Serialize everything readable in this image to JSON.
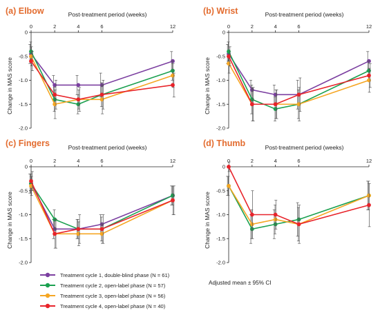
{
  "chart_data": [
    {
      "type": "line",
      "title": "(a) Elbow",
      "xlabel": "Post-treatment period (weeks)",
      "ylabel": "Change in MAS score",
      "x": [
        0,
        2,
        4,
        6,
        12
      ],
      "x_ticks": [
        "0",
        "2",
        "4",
        "6",
        "12"
      ],
      "y_ticks": [
        "0",
        "-0.5",
        "-1.0",
        "-1.5",
        "-2.0"
      ],
      "xlim": [
        0,
        12
      ],
      "ylim": [
        -2.0,
        0
      ],
      "series": [
        {
          "name": "Treatment cycle 1, double-blind phase (N = 61)",
          "color": "#7b3fa0",
          "values": [
            -0.45,
            -1.1,
            -1.1,
            -1.1,
            -0.6
          ],
          "ci": [
            0.2,
            0.2,
            0.2,
            0.25,
            0.2
          ]
        },
        {
          "name": "Treatment cycle 2, open-label phase (N = 57)",
          "color": "#1aa04f",
          "values": [
            -0.4,
            -1.4,
            -1.5,
            -1.3,
            -0.8
          ],
          "ci": [
            0.2,
            0.25,
            0.2,
            0.25,
            0.2
          ]
        },
        {
          "name": "Treatment cycle 3, open-label phase (N = 56)",
          "color": "#f5a623",
          "values": [
            -0.5,
            -1.5,
            -1.4,
            -1.4,
            -0.9
          ],
          "ci": [
            0.2,
            0.3,
            0.2,
            0.3,
            0.25
          ]
        },
        {
          "name": "Treatment cycle 4, open-label phase (N = 40)",
          "color": "#e8232a",
          "values": [
            -0.6,
            -1.3,
            -1.4,
            -1.3,
            -1.1
          ],
          "ci": [
            0.2,
            0.3,
            0.25,
            0.3,
            0.25
          ]
        }
      ]
    },
    {
      "type": "line",
      "title": "(b) Wrist",
      "xlabel": "Post-treatment period (weeks)",
      "ylabel": "Change in MAS score",
      "x": [
        0,
        2,
        4,
        6,
        12
      ],
      "x_ticks": [
        "0",
        "2",
        "4",
        "6",
        "12"
      ],
      "y_ticks": [
        "0",
        "-0.5",
        "-1.0",
        "-1.5",
        "-2.0"
      ],
      "xlim": [
        0,
        12
      ],
      "ylim": [
        -2.0,
        0
      ],
      "series": [
        {
          "name": "Treatment cycle 1, double-blind phase (N = 61)",
          "color": "#7b3fa0",
          "values": [
            -0.45,
            -1.2,
            -1.3,
            -1.3,
            -0.6
          ],
          "ci": [
            0.2,
            0.2,
            0.2,
            0.3,
            0.2
          ]
        },
        {
          "name": "Treatment cycle 2, open-label phase (N = 57)",
          "color": "#1aa04f",
          "values": [
            -0.4,
            -1.4,
            -1.6,
            -1.5,
            -0.8
          ],
          "ci": [
            0.2,
            0.3,
            0.25,
            0.3,
            0.2
          ]
        },
        {
          "name": "Treatment cycle 3, open-label phase (N = 56)",
          "color": "#f5a623",
          "values": [
            -0.65,
            -1.5,
            -1.5,
            -1.5,
            -1.0
          ],
          "ci": [
            0.2,
            0.35,
            0.3,
            0.35,
            0.25
          ]
        },
        {
          "name": "Treatment cycle 4, open-label phase (N = 40)",
          "color": "#e8232a",
          "values": [
            -0.5,
            -1.5,
            -1.5,
            -1.3,
            -0.9
          ],
          "ci": [
            0.2,
            0.35,
            0.3,
            0.35,
            0.25
          ]
        }
      ]
    },
    {
      "type": "line",
      "title": "(c) Fingers",
      "xlabel": "Post-treatment period (weeks)",
      "ylabel": "Change in MAS score",
      "x": [
        0,
        2,
        4,
        6,
        12
      ],
      "x_ticks": [
        "0",
        "2",
        "4",
        "6",
        "12"
      ],
      "y_ticks": [
        "0",
        "-0.5",
        "-1.0",
        "-1.5",
        "-2.0"
      ],
      "xlim": [
        0,
        12
      ],
      "ylim": [
        -2.0,
        0
      ],
      "series": [
        {
          "name": "Treatment cycle 1, double-blind phase (N = 61)",
          "color": "#7b3fa0",
          "values": [
            -0.35,
            -1.3,
            -1.3,
            -1.2,
            -0.6
          ],
          "ci": [
            0.2,
            0.2,
            0.2,
            0.2,
            0.2
          ]
        },
        {
          "name": "Treatment cycle 2, open-label phase (N = 57)",
          "color": "#1aa04f",
          "values": [
            -0.35,
            -1.1,
            -1.3,
            -1.3,
            -0.6
          ],
          "ci": [
            0.2,
            0.2,
            0.2,
            0.25,
            0.2
          ]
        },
        {
          "name": "Treatment cycle 3, open-label phase (N = 56)",
          "color": "#f5a623",
          "values": [
            -0.4,
            -1.4,
            -1.4,
            -1.4,
            -0.7
          ],
          "ci": [
            0.2,
            0.3,
            0.25,
            0.2,
            0.3
          ]
        },
        {
          "name": "Treatment cycle 4, open-label phase (N = 40)",
          "color": "#e8232a",
          "values": [
            -0.3,
            -1.4,
            -1.3,
            -1.3,
            -0.7
          ],
          "ci": [
            0.2,
            0.3,
            0.3,
            0.3,
            0.3
          ]
        }
      ]
    },
    {
      "type": "line",
      "title": "(d) Thumb",
      "xlabel": "Post-treatment period (weeks)",
      "ylabel": "Change in MAS score",
      "x": [
        0,
        2,
        4,
        6,
        12
      ],
      "x_ticks": [
        "0",
        "2",
        "4",
        "6",
        "12"
      ],
      "y_ticks": [
        "0",
        "-0.5",
        "-1.0",
        "-1.5",
        "-2.0"
      ],
      "xlim": [
        0,
        12
      ],
      "ylim": [
        -2.0,
        0
      ],
      "series": [
        {
          "name": "Treatment cycle 2, open-label phase (N = 57)",
          "color": "#1aa04f",
          "values": [
            -0.4,
            -1.3,
            -1.2,
            -1.1,
            -0.6
          ],
          "ci": [
            0.2,
            0.3,
            0.3,
            0.35,
            0.3
          ]
        },
        {
          "name": "Treatment cycle 3, open-label phase (N = 56)",
          "color": "#f5a623",
          "values": [
            -0.4,
            -1.2,
            -1.1,
            -1.2,
            -0.6
          ],
          "ci": [
            0.2,
            0.3,
            0.3,
            0.35,
            0.3
          ]
        },
        {
          "name": "Treatment cycle 4, open-label phase (N = 40)",
          "color": "#e8232a",
          "values": [
            0.0,
            -1.0,
            -1.0,
            -1.2,
            -0.8
          ],
          "ci": [
            0.1,
            0.5,
            0.3,
            0.4,
            0.45
          ]
        }
      ]
    }
  ],
  "legend": [
    {
      "label": "Treatment cycle 1, double-blind phase (N = 61)",
      "color": "#7b3fa0"
    },
    {
      "label": "Treatment cycle 2, open-label phase (N = 57)",
      "color": "#1aa04f"
    },
    {
      "label": "Treatment cycle 3, open-label phase (N = 56)",
      "color": "#f5a623"
    },
    {
      "label": "Treatment cycle 4, open-label phase (N = 40)",
      "color": "#e8232a"
    }
  ],
  "note": "Adjusted mean ± 95% CI",
  "colors": {
    "title": "#e36c2f",
    "axis": "#222222",
    "error_bar": "#555555"
  }
}
